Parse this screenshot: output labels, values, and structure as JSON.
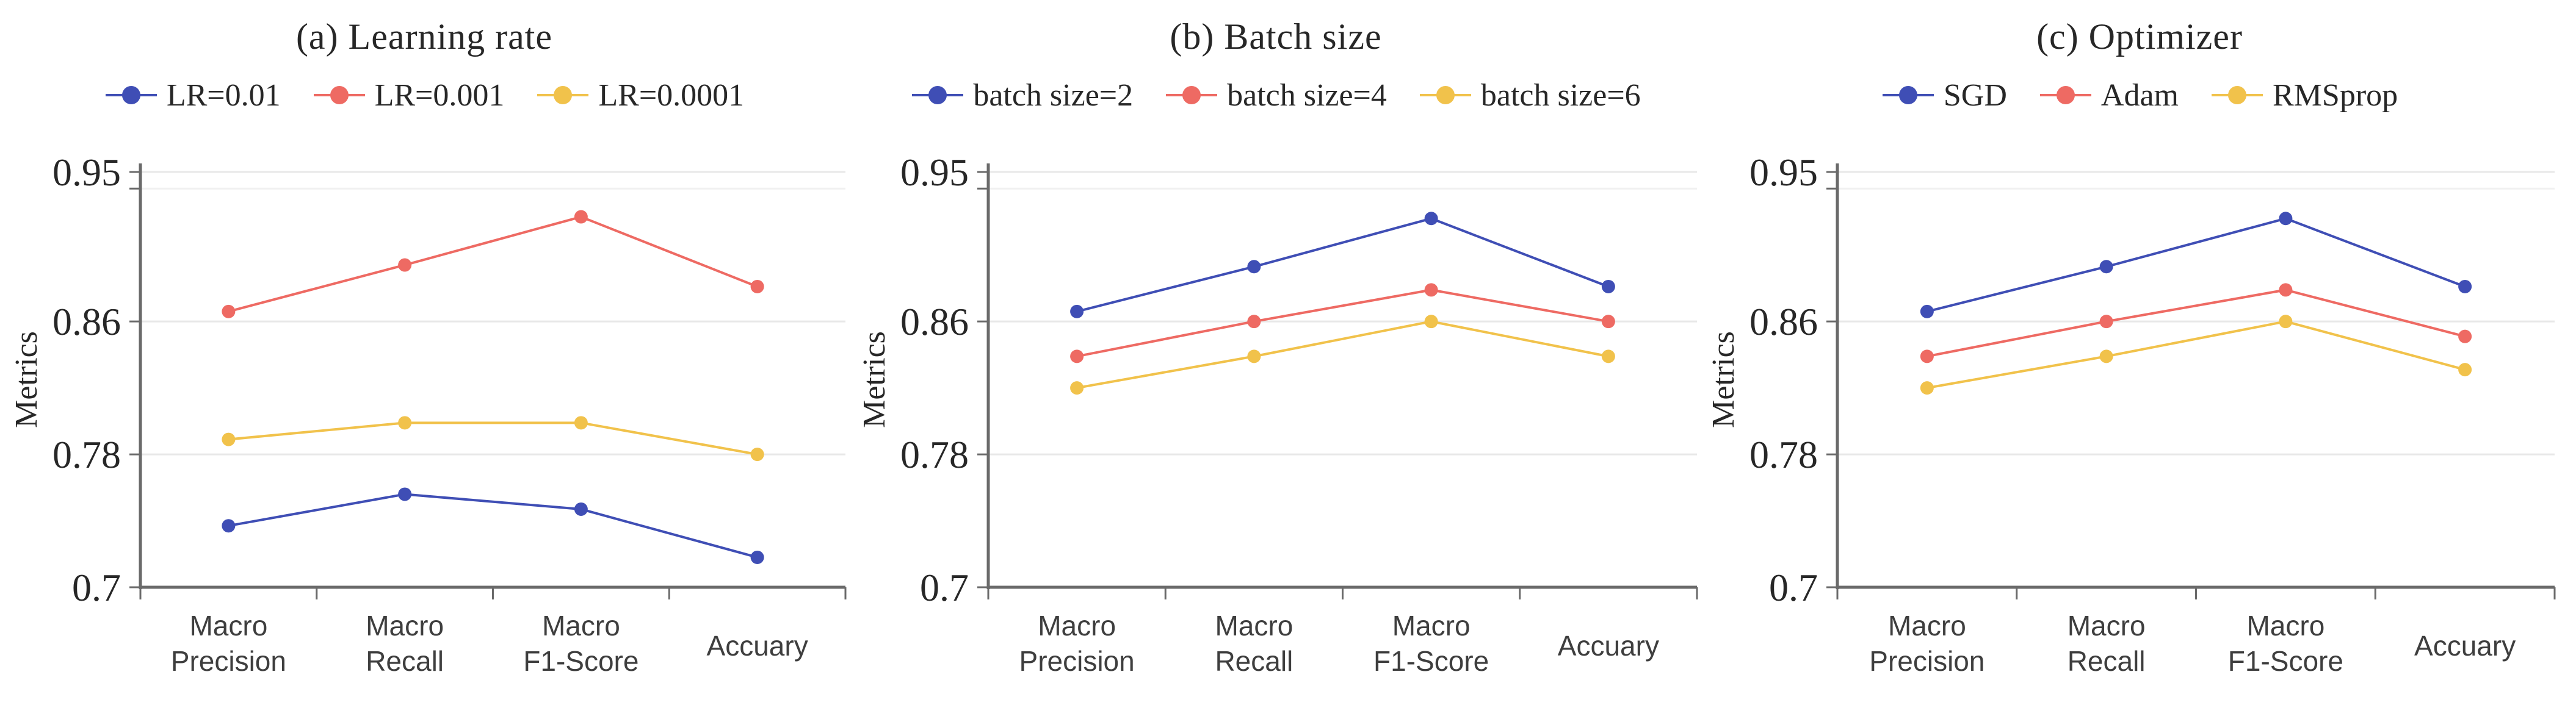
{
  "figure_name": "model-hyperparameter-sensitivity-line-charts",
  "colors": {
    "series_blue": "#3F4EB5",
    "series_red": "#EE6A63",
    "series_yellow": "#F1C24B",
    "gridline": "#e8e8e8",
    "gridline_faint": "#f1f1f1",
    "axis": "#6a6a6a",
    "text_dark": "#272727",
    "category_text": "#3e3e3e"
  },
  "chart_data": [
    {
      "type": "line",
      "title": "(a) Learning rate",
      "categories": [
        "Macro Precision",
        "Macro Recall",
        "Macro F1-Score",
        "Accuary"
      ],
      "ylabel": "Metrics",
      "ylim": [
        0.7,
        0.95
      ],
      "ytick_labels": [
        "0.95",
        "0.86",
        "0.78",
        "0.7"
      ],
      "ytick_values": [
        0.95,
        0.86,
        0.78,
        0.7
      ],
      "gridline_values": [
        0.94,
        0.86,
        0.78
      ],
      "grid": "horizontal",
      "legend_position": "top",
      "series": [
        {
          "name": "LR=0.01",
          "color": "#3F4EB5",
          "values": [
            0.737,
            0.756,
            0.747,
            0.718
          ]
        },
        {
          "name": "LR=0.001",
          "color": "#EE6A63",
          "values": [
            0.866,
            0.894,
            0.923,
            0.881
          ]
        },
        {
          "name": "LR=0.0001",
          "color": "#F1C24B",
          "values": [
            0.789,
            0.799,
            0.799,
            0.78
          ]
        }
      ]
    },
    {
      "type": "line",
      "title": "(b) Batch size",
      "categories": [
        "Macro Precision",
        "Macro Recall",
        "Macro F1-Score",
        "Accuary"
      ],
      "ylabel": "Metrics",
      "ylim": [
        0.7,
        0.95
      ],
      "ytick_labels": [
        "0.95",
        "0.86",
        "0.78",
        "0.7"
      ],
      "ytick_values": [
        0.95,
        0.86,
        0.78,
        0.7
      ],
      "gridline_values": [
        0.94,
        0.86,
        0.78
      ],
      "grid": "horizontal",
      "legend_position": "top",
      "series": [
        {
          "name": "batch size=2",
          "color": "#3F4EB5",
          "values": [
            0.866,
            0.893,
            0.922,
            0.881
          ]
        },
        {
          "name": "batch size=4",
          "color": "#EE6A63",
          "values": [
            0.839,
            0.86,
            0.879,
            0.86
          ]
        },
        {
          "name": "batch size=6",
          "color": "#F1C24B",
          "values": [
            0.82,
            0.839,
            0.86,
            0.839
          ]
        }
      ]
    },
    {
      "type": "line",
      "title": "(c) Optimizer",
      "categories": [
        "Macro Precision",
        "Macro Recall",
        "Macro F1-Score",
        "Accuary"
      ],
      "ylabel": "Metrics",
      "ylim": [
        0.7,
        0.95
      ],
      "ytick_labels": [
        "0.95",
        "0.86",
        "0.78",
        "0.7"
      ],
      "ytick_values": [
        0.95,
        0.86,
        0.78,
        0.7
      ],
      "gridline_values": [
        0.94,
        0.86,
        0.78
      ],
      "grid": "horizontal",
      "legend_position": "top",
      "series": [
        {
          "name": "SGD",
          "color": "#3F4EB5",
          "values": [
            0.866,
            0.893,
            0.922,
            0.881
          ]
        },
        {
          "name": "Adam",
          "color": "#EE6A63",
          "values": [
            0.839,
            0.86,
            0.879,
            0.851
          ]
        },
        {
          "name": "RMSprop",
          "color": "#F1C24B",
          "values": [
            0.82,
            0.839,
            0.86,
            0.831
          ]
        }
      ]
    }
  ]
}
